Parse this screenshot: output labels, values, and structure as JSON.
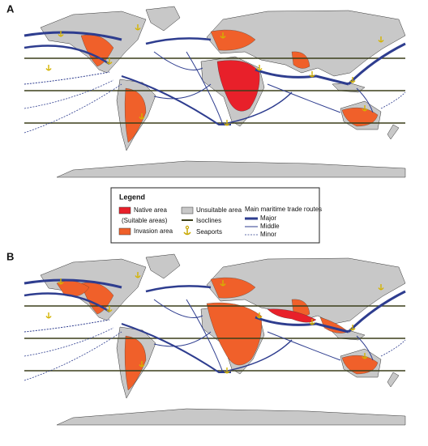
{
  "panels": [
    {
      "label": "A"
    },
    {
      "label": "B"
    }
  ],
  "legend": {
    "title": "Legend",
    "native": "Native area",
    "suitable": "(Suitable areas)",
    "invasion": "Invasion area",
    "unsuitable": "Unsuitable area",
    "isoclines": "Isoclines",
    "seaports": "Seaports",
    "routes_title": "Main maritime trade routes",
    "major": "Major",
    "middle": "Middle",
    "minor": "Minor"
  }
}
